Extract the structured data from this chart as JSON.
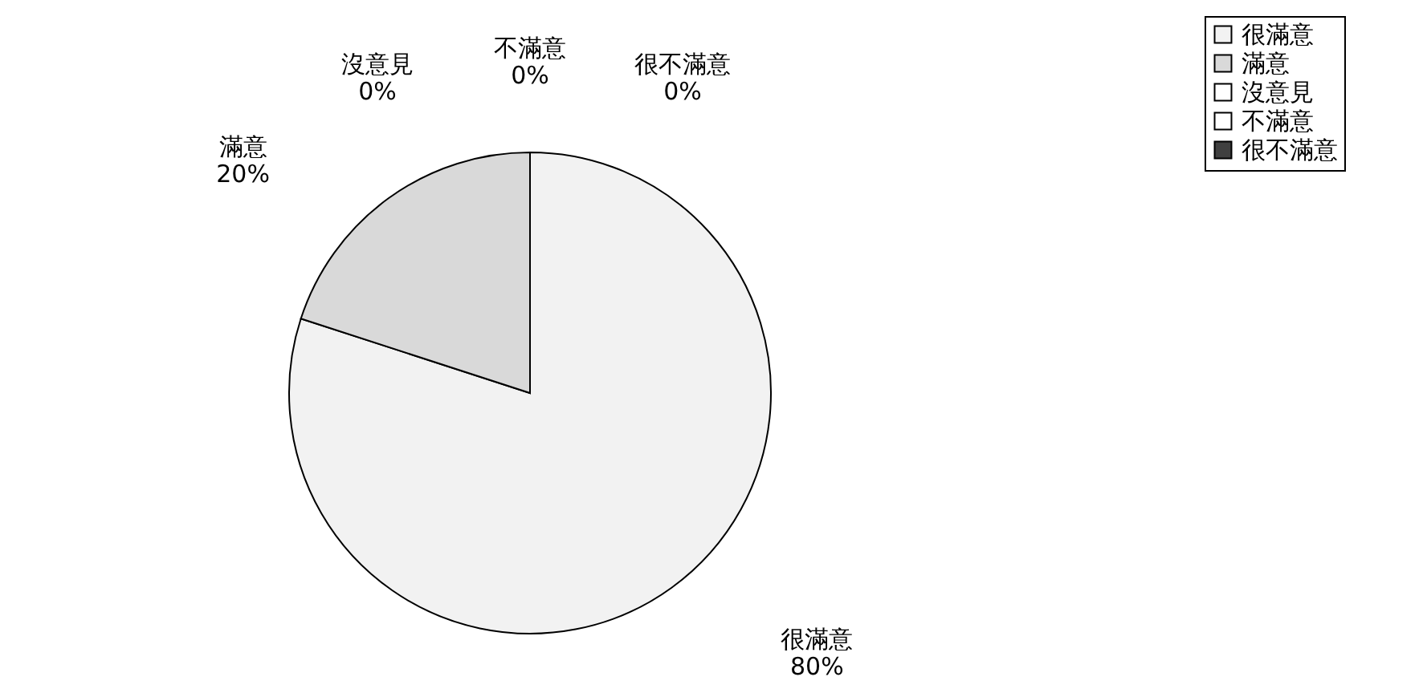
{
  "chart_data": {
    "type": "pie",
    "categories": [
      "很滿意",
      "滿意",
      "沒意見",
      "不滿意",
      "很不滿意"
    ],
    "values": [
      80,
      20,
      0,
      0,
      0
    ],
    "colors": [
      "#f2f2f2",
      "#d9d9d9",
      "#ffffff",
      "#ffffff",
      "#404040"
    ],
    "value_labels": [
      "80%",
      "20%",
      "0%",
      "0%",
      "0%"
    ],
    "legend": "right"
  }
}
